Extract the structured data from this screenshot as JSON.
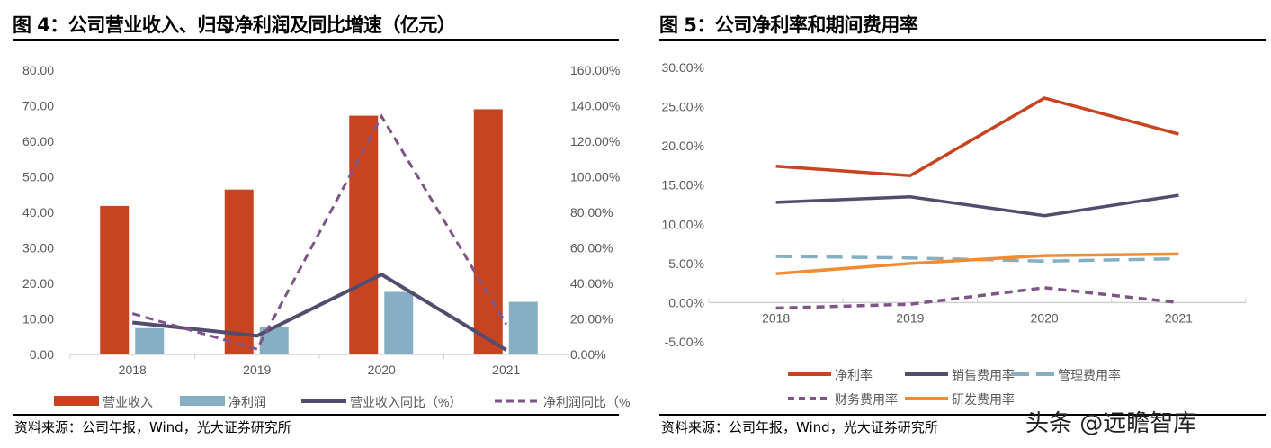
{
  "fig4": {
    "title": "图 4：公司营业收入、归母净利润及同比增速（亿元）",
    "source": "资料来源：公司年报，Wind，光大证券研究所"
  },
  "fig5": {
    "title": "图 5：公司净利率和期间费用率",
    "source": "资料来源：公司年报，Wind，光大证券研究所"
  },
  "watermark": "头条 @远瞻智库",
  "chart_data": [
    {
      "type": "bar",
      "categories": [
        "2018",
        "2019",
        "2020",
        "2021"
      ],
      "ylim": [
        0,
        80
      ],
      "yticks": [
        "0.00",
        "10.00",
        "20.00",
        "30.00",
        "40.00",
        "50.00",
        "60.00",
        "70.00",
        "80.00"
      ],
      "y2lim": [
        0,
        160
      ],
      "y2ticks": [
        "0.00%",
        "20.00%",
        "40.00%",
        "60.00%",
        "80.00%",
        "100.00%",
        "120.00%",
        "140.00%",
        "160.00%"
      ],
      "legend": "bottom",
      "series": [
        {
          "name": "营业收入",
          "kind": "bar",
          "axis": "left",
          "color": "#C8431F",
          "values": [
            41.8,
            46.4,
            67.2,
            69.0
          ]
        },
        {
          "name": "净利润",
          "kind": "bar",
          "axis": "left",
          "color": "#86AFC4",
          "values": [
            7.4,
            7.6,
            17.6,
            14.8
          ]
        },
        {
          "name": "营业收入同比（%）",
          "kind": "line",
          "axis": "right",
          "color": "#534C6E",
          "dash": false,
          "values": [
            18.0,
            10.5,
            45.0,
            2.5
          ]
        },
        {
          "name": "净利润同比（%）",
          "kind": "line",
          "axis": "right",
          "color": "#7E5586",
          "dash": true,
          "values": [
            23.0,
            3.0,
            134.0,
            17.0
          ]
        }
      ]
    },
    {
      "type": "line",
      "categories": [
        "2018",
        "2019",
        "2020",
        "2021"
      ],
      "ylim": [
        -5,
        30
      ],
      "yticks": [
        "-5.00%",
        "0.00%",
        "5.00%",
        "10.00%",
        "15.00%",
        "20.00%",
        "25.00%",
        "30.00%"
      ],
      "legend": "bottom",
      "series": [
        {
          "name": "净利率",
          "color": "#C8431F",
          "dash": false,
          "values": [
            17.4,
            16.2,
            26.1,
            21.5
          ]
        },
        {
          "name": "销售费用率",
          "color": "#534C6E",
          "dash": false,
          "values": [
            12.8,
            13.5,
            11.1,
            13.7
          ]
        },
        {
          "name": "管理费用率",
          "color": "#86AFC4",
          "dash": true,
          "values": [
            5.9,
            5.7,
            5.3,
            5.6
          ]
        },
        {
          "name": "财务费用率",
          "color": "#7E5586",
          "dash": true,
          "values": [
            -0.7,
            -0.2,
            1.9,
            0.0
          ]
        },
        {
          "name": "研发费用率",
          "color": "#F08C34",
          "dash": false,
          "values": [
            3.7,
            5.0,
            6.0,
            6.2
          ]
        }
      ]
    }
  ]
}
